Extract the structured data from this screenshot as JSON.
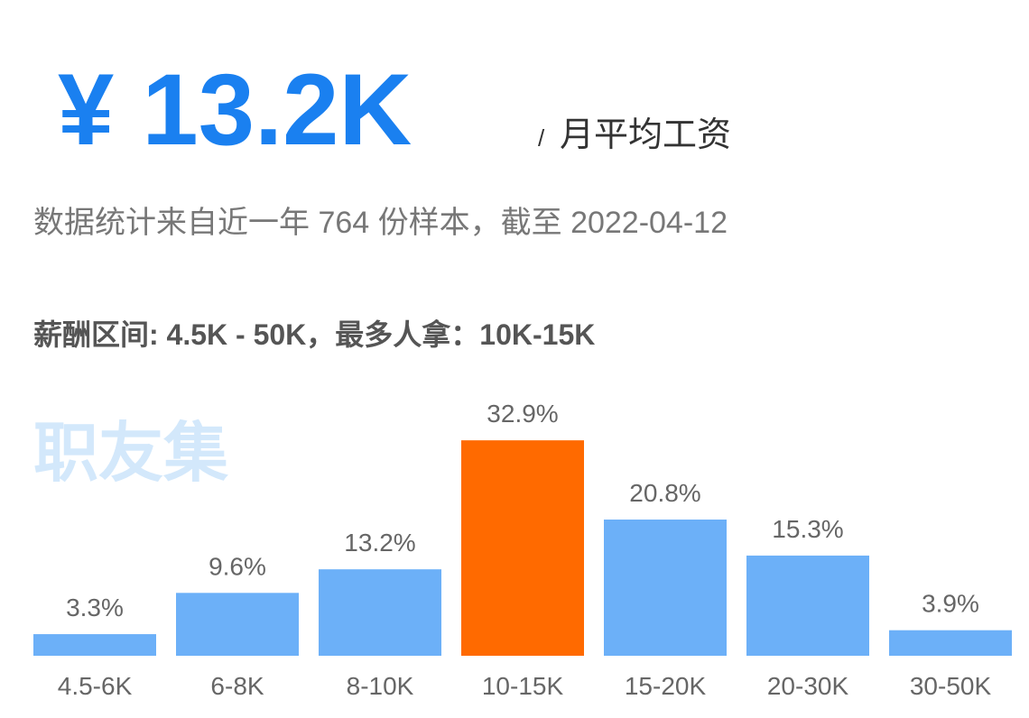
{
  "header": {
    "salary": "¥ 13.2K",
    "slash": "/",
    "unit": "月平均工资",
    "source": "数据统计来自近一年 764 份样本，截至 2022-04-12",
    "range": "薪酬区间: 4.5K - 50K，最多人拿：10K-15K",
    "watermark": "职友集"
  },
  "chart_data": {
    "type": "bar",
    "categories": [
      "4.5-6K",
      "6-8K",
      "8-10K",
      "10-15K",
      "15-20K",
      "20-30K",
      "30-50K"
    ],
    "values": [
      3.3,
      9.6,
      13.2,
      32.9,
      20.8,
      15.3,
      3.9
    ],
    "value_labels": [
      "3.3%",
      "9.6%",
      "13.2%",
      "32.9%",
      "20.8%",
      "15.3%",
      "3.9%"
    ],
    "colors": [
      "#6cb0f8",
      "#6cb0f8",
      "#6cb0f8",
      "#ff6a00",
      "#6cb0f8",
      "#6cb0f8",
      "#6cb0f8"
    ]
  }
}
